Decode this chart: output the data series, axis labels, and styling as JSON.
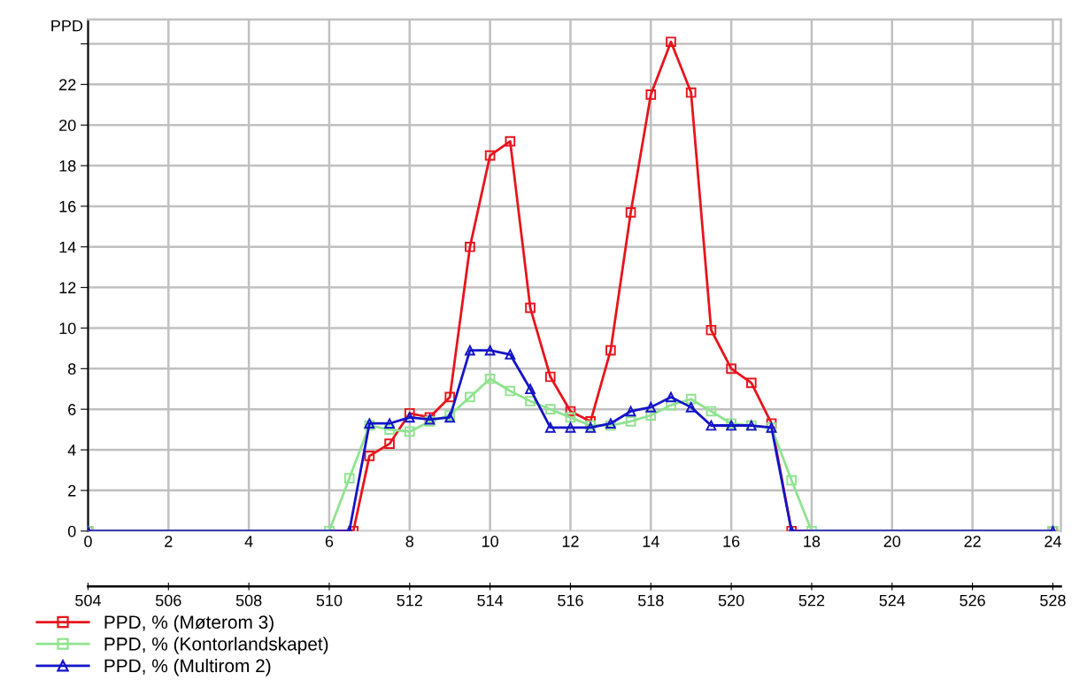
{
  "chart_data": {
    "type": "line",
    "ylabel": "PPD",
    "series": [
      {
        "name": "PPD, % (Møterom 3)",
        "color": "#e8141c",
        "marker": "square",
        "x": [
          0,
          6.6,
          7,
          7.5,
          8,
          8.5,
          9,
          9.5,
          10,
          10.5,
          11,
          11.5,
          12,
          12.5,
          13,
          13.5,
          14,
          14.5,
          15,
          15.5,
          16,
          16.5,
          17,
          17.5,
          24
        ],
        "values": [
          0,
          0,
          3.7,
          4.3,
          5.8,
          5.6,
          6.6,
          14.0,
          18.5,
          19.2,
          11.0,
          7.6,
          5.9,
          5.4,
          8.9,
          15.7,
          21.5,
          24.1,
          21.6,
          9.9,
          8.0,
          7.3,
          5.3,
          0,
          0
        ]
      },
      {
        "name": "PPD, % (Kontorlandskapet)",
        "color": "#8fe38f",
        "marker": "square",
        "x": [
          0,
          6,
          6.5,
          7,
          7.5,
          8,
          8.5,
          9,
          9.5,
          10,
          10.5,
          11,
          11.5,
          12,
          12.5,
          13,
          13.5,
          14,
          14.5,
          15,
          15.5,
          16,
          16.5,
          17,
          17.5,
          18,
          24
        ],
        "values": [
          0,
          0,
          2.6,
          5.2,
          5.0,
          4.9,
          5.4,
          5.7,
          6.6,
          7.5,
          6.9,
          6.4,
          6.0,
          5.6,
          5.2,
          5.2,
          5.4,
          5.7,
          6.2,
          6.5,
          5.9,
          5.3,
          5.2,
          5.1,
          2.5,
          0,
          0
        ]
      },
      {
        "name": "PPD, % (Multirom 2)",
        "color": "#1414c8",
        "marker": "triangle",
        "x": [
          0,
          6.5,
          7,
          7.5,
          8,
          8.5,
          9,
          9.5,
          10,
          10.5,
          11,
          11.5,
          12,
          12.5,
          13,
          13.5,
          14,
          14.5,
          15,
          15.5,
          16,
          16.5,
          17,
          17.5,
          24
        ],
        "values": [
          0,
          0,
          5.3,
          5.3,
          5.6,
          5.5,
          5.6,
          8.9,
          8.9,
          8.7,
          7.0,
          5.1,
          5.1,
          5.1,
          5.3,
          5.9,
          6.1,
          6.6,
          6.1,
          5.2,
          5.2,
          5.2,
          5.1,
          0,
          0
        ]
      }
    ],
    "xlim": [
      0,
      24.2
    ],
    "xticks": [
      0,
      2,
      4,
      6,
      8,
      10,
      12,
      14,
      16,
      18,
      20,
      22,
      24
    ],
    "x2lim": [
      504,
      528.2
    ],
    "x2ticks": [
      504,
      506,
      508,
      510,
      512,
      514,
      516,
      518,
      520,
      522,
      524,
      526,
      528
    ],
    "ylim": [
      0,
      25.2
    ],
    "yticks": [
      0,
      2,
      4,
      6,
      8,
      10,
      12,
      14,
      16,
      18,
      20,
      22,
      {
        "value": 24,
        "label": null
      }
    ],
    "grid": true,
    "legend": "bottom left"
  }
}
